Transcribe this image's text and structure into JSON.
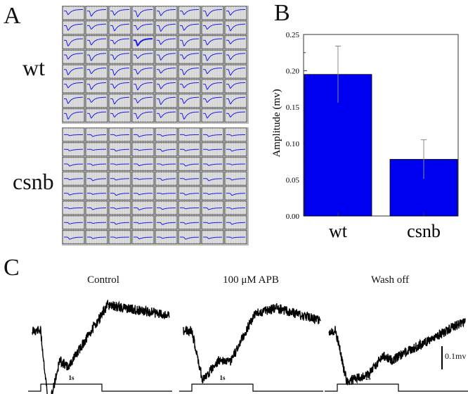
{
  "panels": {
    "a": {
      "letter": "A"
    },
    "b": {
      "letter": "B"
    },
    "c": {
      "letter": "C"
    }
  },
  "grid_groups": [
    {
      "label": "wt",
      "shape": "wt"
    },
    {
      "label": "csnb",
      "shape": "csnb"
    }
  ],
  "colors": {
    "trace_blue": "#1a1aee",
    "bar_blue": "#0000f0",
    "grid_cell": "#d6d6d6",
    "grid_border": "#6c6c6c",
    "black_trace": "#000000"
  },
  "chart_data": [
    {
      "type": "bar",
      "categories": [
        "wt",
        "csnb"
      ],
      "values": [
        0.195,
        0.078
      ],
      "errors": [
        0.039,
        0.027
      ],
      "ylabel": "Amplitude (mv)",
      "xlabel": "",
      "ylim": [
        0,
        0.25
      ],
      "yticks": [
        "0.00",
        "0.05",
        "0.10",
        "0.15",
        "0.20",
        "0.25"
      ],
      "grid": false
    }
  ],
  "traces": {
    "scale_bar_label": "0.1mv",
    "stimulus_label": "1s",
    "items": [
      {
        "title": "Control",
        "shape": "control"
      },
      {
        "title": "100 μM APB",
        "shape": "apb"
      },
      {
        "title": "Wash off",
        "shape": "wash"
      }
    ]
  }
}
